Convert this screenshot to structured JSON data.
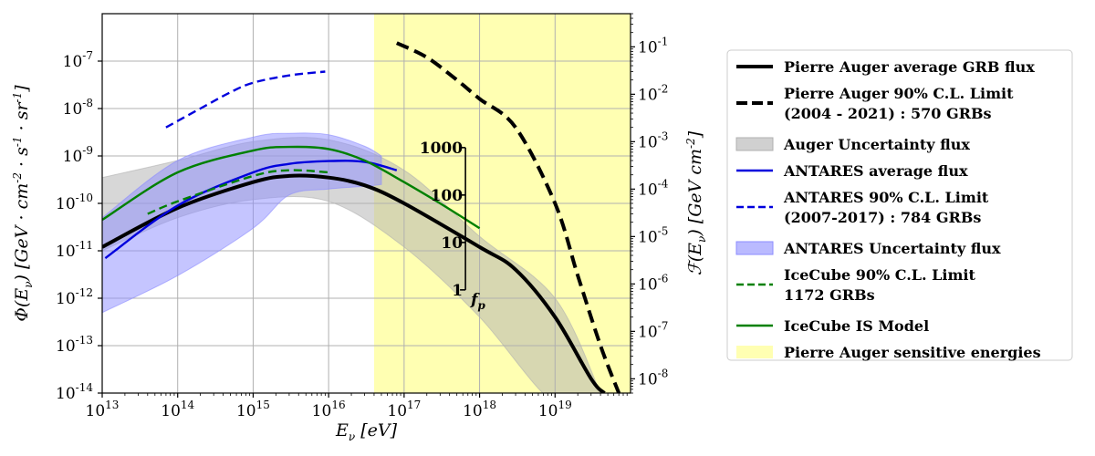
{
  "chart_data": {
    "type": "line",
    "xlabel": "E_ν [eV]",
    "ylabel_left": "Φ(E_ν) [GeV · cm^-2 · s^-1 · sr^-1]",
    "ylabel_right": "ℱ(E_ν) [GeV cm^-2]",
    "x_scale": "log",
    "y_scale": "log",
    "xlim": [
      10000000000000.0,
      1e+20
    ],
    "ylim_left": [
      1e-14,
      1e-06
    ],
    "ylim_right": [
      5e-09,
      0.5
    ],
    "grid": true,
    "x_ticks": [
      {
        "value": 10000000000000.0,
        "label": "10^13"
      },
      {
        "value": 100000000000000.0,
        "label": "10^14"
      },
      {
        "value": 1000000000000000.0,
        "label": "10^15"
      },
      {
        "value": 1e+16,
        "label": "10^16"
      },
      {
        "value": 1e+17,
        "label": "10^17"
      },
      {
        "value": 1e+18,
        "label": "10^18"
      },
      {
        "value": 1e+19,
        "label": "10^19"
      }
    ],
    "y_ticks_left": [
      {
        "value": 1e-14,
        "label": "10^-14"
      },
      {
        "value": 1e-13,
        "label": "10^-13"
      },
      {
        "value": 1e-12,
        "label": "10^-12"
      },
      {
        "value": 1e-11,
        "label": "10^-11"
      },
      {
        "value": 1e-10,
        "label": "10^-10"
      },
      {
        "value": 1e-09,
        "label": "10^-9"
      },
      {
        "value": 1e-08,
        "label": "10^-8"
      },
      {
        "value": 1e-07,
        "label": "10^-7"
      }
    ],
    "y_ticks_right": [
      {
        "value": 1e-08,
        "label": "10^-8"
      },
      {
        "value": 1e-07,
        "label": "10^-7"
      },
      {
        "value": 1e-06,
        "label": "10^-6"
      },
      {
        "value": 1e-05,
        "label": "10^-5"
      },
      {
        "value": 0.0001,
        "label": "10^-4"
      },
      {
        "value": 0.001,
        "label": "10^-3"
      },
      {
        "value": 0.01,
        "label": "10^-2"
      },
      {
        "value": 0.1,
        "label": "10^-1"
      }
    ],
    "sensitive_region": {
      "x_from": 4e+16,
      "x_to": 1e+20,
      "color": "#ffffb2",
      "label": "Pierre Auger sensitive energies"
    },
    "bands": [
      {
        "name": "Auger Uncertainty flux",
        "color": "#b0b0b0",
        "x": [
          10000000000000.0,
          100000000000000.0,
          1000000000000000.0,
          1e+16,
          1e+17,
          1e+18,
          1e+19,
          4e+19
        ],
        "upper": [
          3.5e-10,
          8e-10,
          2e-09,
          2.2e-09,
          5e-10,
          2e-11,
          1e-12,
          1e-14
        ],
        "lower": [
          1e-11,
          5e-11,
          1.2e-10,
          1.1e-10,
          1.2e-11,
          4e-13,
          6e-15,
          1e-14
        ]
      },
      {
        "name": "ANTARES Uncertainty flux",
        "color": "#8c8cff",
        "x": [
          10000000000000.0,
          100000000000000.0,
          1000000000000000.0,
          3000000000000000.0,
          1e+16,
          3e+16,
          5e+16
        ],
        "upper": [
          5e-11,
          8e-10,
          2.5e-09,
          3e-09,
          2.8e-09,
          1.6e-09,
          1e-09
        ],
        "lower": [
          5e-13,
          3e-12,
          3e-11,
          1.5e-10,
          2e-10,
          2.3e-10,
          2.5e-10
        ]
      }
    ],
    "series": [
      {
        "name": "Pierre Auger average GRB flux",
        "color": "#000000",
        "style": "solid",
        "axis": "left",
        "x": [
          10000000000000.0,
          100000000000000.0,
          1000000000000000.0,
          3000000000000000.0,
          1e+16,
          3e+16,
          1e+17,
          1e+18,
          3e+18,
          1e+19,
          3e+19,
          4.5e+19
        ],
        "y": [
          1.2e-11,
          8e-11,
          2.8e-10,
          3.8e-10,
          3.5e-10,
          2.4e-10,
          1e-10,
          1.2e-11,
          4e-12,
          4e-13,
          2e-14,
          1e-14
        ]
      },
      {
        "name": "Pierre Auger 90% C.L. Limit",
        "name_line2": "(2004 - 2021) : 570 GRBs",
        "color": "#000000",
        "style": "dashed",
        "axis": "right",
        "x": [
          8e+16,
          2e+17,
          5e+17,
          1e+18,
          3e+18,
          1e+19,
          2e+19,
          4e+19,
          7e+19
        ],
        "y": [
          0.12,
          0.06,
          0.02,
          0.008,
          0.002,
          5e-05,
          1.5e-06,
          5e-08,
          5e-09
        ]
      },
      {
        "name": "ANTARES average flux",
        "color": "#0000dd",
        "style": "solid",
        "axis": "left",
        "x": [
          11000000000000.0,
          100000000000000.0,
          1000000000000000.0,
          3000000000000000.0,
          1e+16,
          3e+16,
          8e+16
        ],
        "y": [
          7e-12,
          9e-11,
          4.5e-10,
          6.8e-10,
          7.8e-10,
          7.5e-10,
          5e-10
        ]
      },
      {
        "name": "ANTARES 90% C.L. Limit",
        "name_line2": "(2007-2017) : 784 GRBs",
        "color": "#0000dd",
        "style": "dashed",
        "axis": "left",
        "x": [
          70000000000000.0,
          200000000000000.0,
          500000000000000.0,
          1000000000000000.0,
          3000000000000000.0,
          9000000000000000.0
        ],
        "y": [
          4e-09,
          1e-08,
          2.2e-08,
          3.5e-08,
          5e-08,
          6e-08
        ]
      },
      {
        "name": "IceCube 90% C.L. Limit",
        "name_line2": "1172 GRBs",
        "color": "#008000",
        "style": "dashed",
        "axis": "left",
        "x": [
          40000000000000.0,
          100000000000000.0,
          1000000000000000.0,
          3000000000000000.0,
          1e+16
        ],
        "y": [
          6e-11,
          1.1e-10,
          3.8e-10,
          5e-10,
          4.5e-10
        ]
      },
      {
        "name": "IceCube IS Model",
        "color": "#008000",
        "style": "solid",
        "axis": "left",
        "x": [
          10000000000000.0,
          100000000000000.0,
          1000000000000000.0,
          3000000000000000.0,
          1e+16,
          3e+16,
          1e+17,
          3e+17,
          1e+18
        ],
        "y": [
          4.5e-11,
          4.5e-10,
          1.3e-09,
          1.55e-09,
          1.4e-09,
          8e-10,
          2.8e-10,
          1e-10,
          3e-11
        ]
      }
    ],
    "fp_scale": {
      "label": "f_p",
      "x": 6.5e+17,
      "ticks": [
        {
          "label": "1",
          "y": 1.5e-12
        },
        {
          "label": "10",
          "y": 1.5e-11
        },
        {
          "label": "100",
          "y": 1.5e-10
        },
        {
          "label": "1000",
          "y": 1.5e-09
        }
      ]
    },
    "legend_placement": "right, outside plot"
  }
}
